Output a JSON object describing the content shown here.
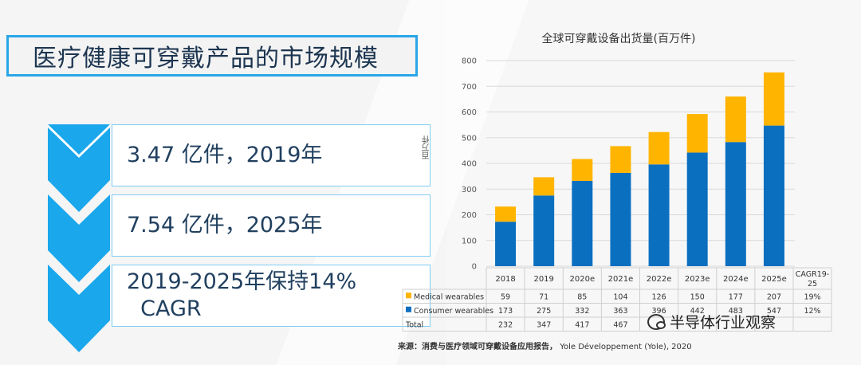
{
  "page_title": "医疗健康可穿戴产品的市场规模",
  "stats": [
    {
      "text": "3.47 亿件，2019年"
    },
    {
      "text": "7.54 亿件，2025年"
    },
    {
      "text": "2019-2025年保持14%\n  CAGR"
    }
  ],
  "colors": {
    "accent": "#2aa6e8",
    "medical": "#ffb400",
    "consumer": "#0b6fc0"
  },
  "chart_data": {
    "type": "bar",
    "stacked": true,
    "title": "全球可穿戴设备出货量(百万件)",
    "ylabel": "百万件",
    "xlabel": "",
    "ylim": [
      0,
      800
    ],
    "yticks": [
      0,
      100,
      200,
      300,
      400,
      500,
      600,
      700,
      800
    ],
    "categories": [
      "2018",
      "2019",
      "2020e",
      "2021e",
      "2022e",
      "2023e",
      "2024e",
      "2025e"
    ],
    "series": [
      {
        "name": "Consumer wearables",
        "color": "#0b6fc0",
        "values": [
          173,
          275,
          332,
          363,
          396,
          442,
          483,
          547
        ],
        "cagr": "12%"
      },
      {
        "name": "Medical wearables",
        "color": "#ffb400",
        "values": [
          59,
          71,
          85,
          104,
          126,
          150,
          177,
          207
        ],
        "cagr": "19%"
      }
    ],
    "table": {
      "extra_header": "CAGR19-25",
      "rows": [
        {
          "label": "Medical wearables",
          "color": "#ffb400",
          "values": [
            "59",
            "71",
            "85",
            "104",
            "126",
            "150",
            "177",
            "207"
          ],
          "extra": "19%"
        },
        {
          "label": "Consumer wearables",
          "color": "#0b6fc0",
          "values": [
            "173",
            "275",
            "332",
            "363",
            "396",
            "442",
            "483",
            "547"
          ],
          "extra": "12%"
        },
        {
          "label": "Total",
          "color": "",
          "values": [
            "232",
            "347",
            "417",
            "467",
            "",
            "",
            "",
            ""
          ],
          "extra": ""
        }
      ]
    }
  },
  "source": {
    "label": "来源：",
    "text": "消费与医疗领域可穿戴设备应用报告，",
    "suffix": "Yole Développement (Yole), 2020"
  },
  "watermark": "半导体行业观察"
}
